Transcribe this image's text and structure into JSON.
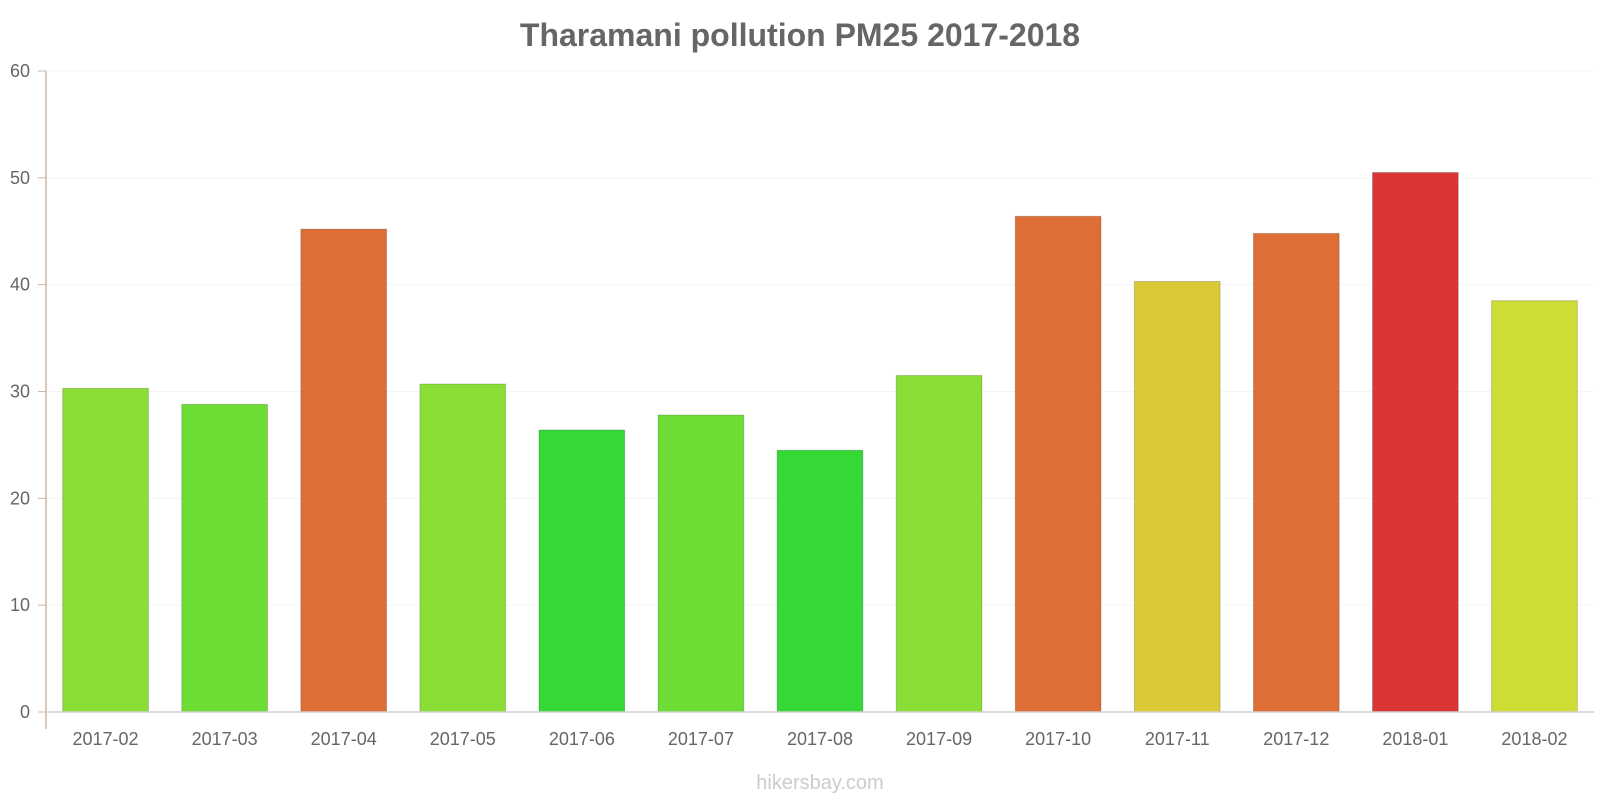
{
  "chart_data": {
    "type": "bar",
    "title": "Tharamani pollution PM25 2017-2018",
    "xlabel": "",
    "ylabel": "",
    "ylim": [
      0,
      60
    ],
    "yticks": [
      0,
      10,
      20,
      30,
      40,
      50,
      60
    ],
    "grid": true,
    "categories": [
      "2017-02",
      "2017-03",
      "2017-04",
      "2017-05",
      "2017-06",
      "2017-07",
      "2017-08",
      "2017-09",
      "2017-10",
      "2017-11",
      "2017-12",
      "2018-01",
      "2018-02"
    ],
    "values": [
      30.3,
      28.8,
      45.2,
      30.7,
      26.4,
      27.8,
      24.5,
      31.5,
      46.4,
      40.3,
      44.8,
      50.5,
      38.5
    ],
    "colors": [
      "#8ade36",
      "#6ddd36",
      "#dd6e36",
      "#8ade36",
      "#35d936",
      "#6ddd36",
      "#35d936",
      "#8ade36",
      "#dd6e36",
      "#dbc936",
      "#dd6e36",
      "#da3636",
      "#cedd36"
    ]
  },
  "watermark": "hikersbay.com"
}
